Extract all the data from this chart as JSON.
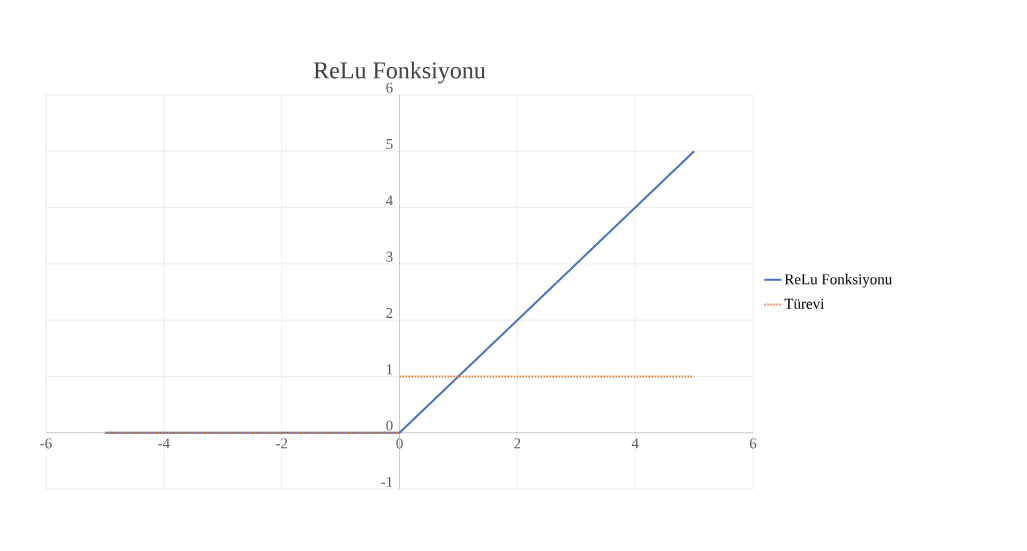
{
  "chart_data": {
    "type": "line",
    "title": "ReLu Fonksiyonu",
    "series": [
      {
        "name": "ReLu Fonksiyonu",
        "color": "#4472c4",
        "line_style": "solid",
        "x": [
          -5,
          0,
          5
        ],
        "values": [
          0,
          0,
          5
        ]
      },
      {
        "name": "Türevi",
        "color": "#ed7d31",
        "line_style": "dotted",
        "x": [
          -5,
          0,
          null,
          0,
          5
        ],
        "values": [
          0,
          0,
          null,
          1,
          1
        ]
      }
    ],
    "xlim": [
      -6,
      6
    ],
    "xticks": [
      -6,
      -4,
      -2,
      0,
      2,
      4,
      6
    ],
    "ylim": [
      -1,
      6
    ],
    "yticks": [
      -1,
      0,
      1,
      2,
      3,
      4,
      5,
      6
    ],
    "grid": true,
    "legend": "right",
    "marker": "none"
  }
}
